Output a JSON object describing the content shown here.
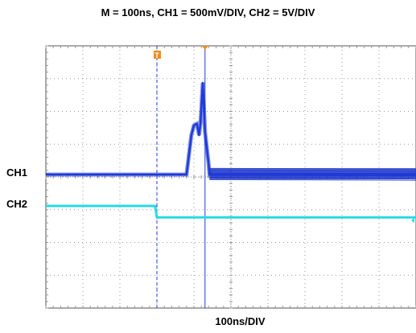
{
  "title": "M = 100ns, CH1 = 500mV/DIV, CH2 = 5V/DIV",
  "chart_data": {
    "type": "line",
    "title": "M = 100ns, CH1 = 500mV/DIV, CH2 = 5V/DIV",
    "xlabel": "100ns/DIV",
    "ylabel": "",
    "x_unit": "ns",
    "xlim": [
      0,
      1000
    ],
    "grid": true,
    "colors": {
      "ch1": "#1f3ad6",
      "ch2": "#27d9e6",
      "trigger_marker": "#f08c1c",
      "grid": "#9a9a9a"
    },
    "series": [
      {
        "name": "CH1",
        "label": "CH1",
        "color": "#1f3ad6",
        "points": [
          [
            0,
            0
          ],
          [
            380,
            0
          ],
          [
            393,
            1.2
          ],
          [
            400,
            1.5
          ],
          [
            408,
            1.55
          ],
          [
            414,
            1.2
          ],
          [
            418,
            1.6
          ],
          [
            424,
            2.8
          ],
          [
            430,
            1.3
          ],
          [
            440,
            0.3
          ],
          [
            442,
            0
          ],
          [
            1000,
            0
          ]
        ],
        "noise_after_ns": 442,
        "noise_band_div": 0.35
      },
      {
        "name": "CH2",
        "label": "CH2",
        "color": "#27d9e6",
        "points": [
          [
            0,
            0
          ],
          [
            295,
            0
          ],
          [
            300,
            -0.35
          ],
          [
            1000,
            -0.35
          ]
        ]
      }
    ],
    "markers": [
      {
        "type": "trigger",
        "x_ns": 300,
        "symbol": "T"
      },
      {
        "type": "cursor",
        "x_ns": 430
      }
    ]
  }
}
